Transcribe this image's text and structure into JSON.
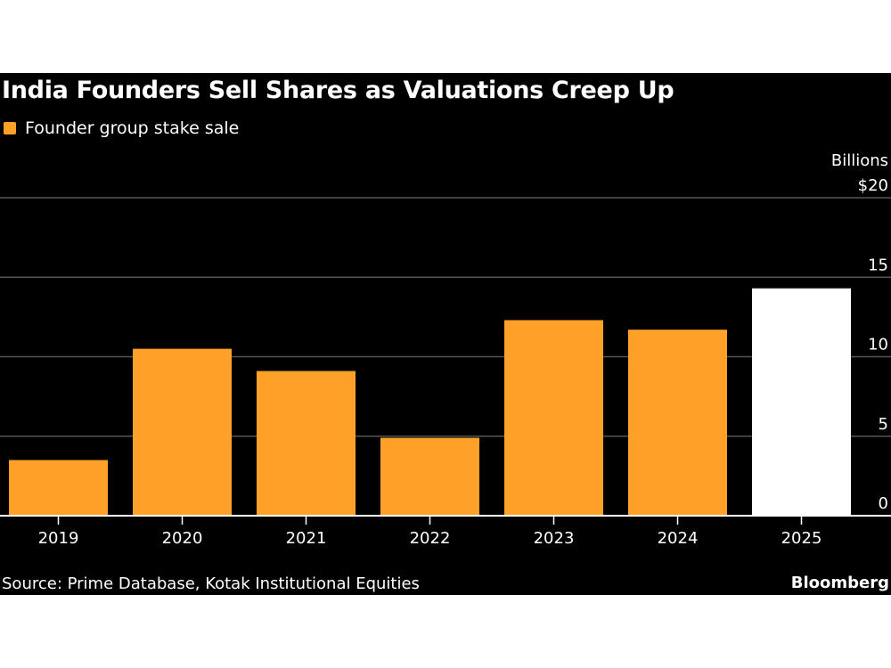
{
  "colors": {
    "bar": "#FFA028",
    "highlight": "#FFFFFF",
    "grid": "#555555",
    "background": "#000000"
  },
  "chart_data": {
    "type": "bar",
    "title": "India Founders Sell Shares as Valuations Creep Up",
    "legend": [
      "Founder group stake sale"
    ],
    "legend_position": "top-left",
    "unit_label": "Billions",
    "categories": [
      "2019",
      "2020",
      "2021",
      "2022",
      "2023",
      "2024",
      "2025"
    ],
    "series": [
      {
        "name": "Founder group stake sale",
        "values": [
          3.5,
          10.5,
          9.1,
          4.9,
          12.3,
          11.7,
          14.3
        ]
      }
    ],
    "highlighted_category": "2025",
    "ylim": [
      0,
      20
    ],
    "yticks": [
      0,
      5,
      10,
      15,
      20
    ],
    "ytick_labels": [
      "0",
      "5",
      "10",
      "15",
      "$20"
    ],
    "grid": true,
    "source": "Source: Prime Database, Kotak Institutional Equities",
    "brand": "Bloomberg"
  }
}
